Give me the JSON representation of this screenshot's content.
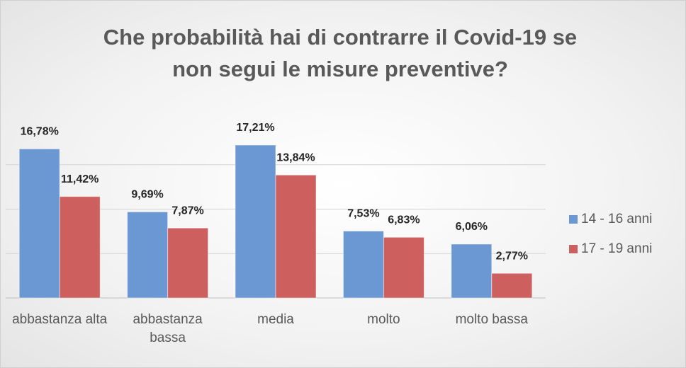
{
  "chart_data": {
    "type": "bar",
    "title": "Che probabilità hai di contrarre il Covid-19 se non segui le misure preventive?",
    "categories": [
      "abbastanza alta",
      "abbastanza bassa",
      "media",
      "molto",
      "molto bassa"
    ],
    "series": [
      {
        "name": "14 - 16 anni",
        "color": "#6b98d3",
        "values": [
          16.78,
          9.69,
          17.21,
          7.53,
          6.06
        ],
        "value_labels": [
          "16,78%",
          "9,69%",
          "17,21%",
          "7,53%",
          "6,06%"
        ]
      },
      {
        "name": "17 - 19 anni",
        "color": "#cd605e",
        "values": [
          11.42,
          7.87,
          13.84,
          6.83,
          2.77
        ],
        "value_labels": [
          "11,42%",
          "7,87%",
          "13,84%",
          "6,83%",
          "2,77%"
        ]
      }
    ],
    "ylim": [
      0,
      20
    ],
    "yticks": [
      0,
      5,
      10,
      15
    ],
    "grid": true,
    "legend": "right"
  }
}
